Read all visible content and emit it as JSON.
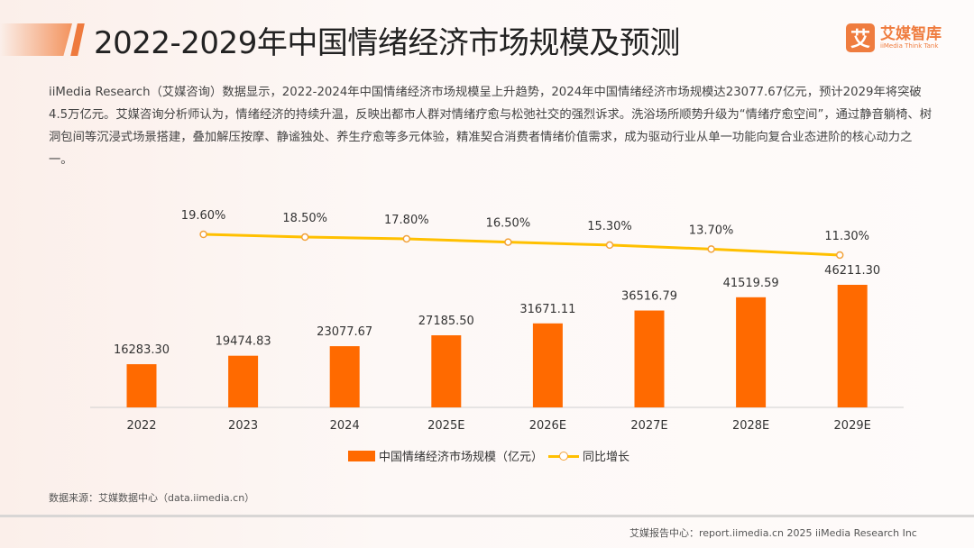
{
  "header": {
    "title": "2022-2029年中国情绪经济市场规模及预测",
    "logo_mark": "艾",
    "logo_name": "艾媒智库",
    "logo_sub": "iiMedia Think Tank"
  },
  "description": "iiMedia Research（艾媒咨询）数据显示，2022-2024年中国情绪经济市场规模呈上升趋势，2024年中国情绪经济市场规模达23077.67亿元，预计2029年将突破4.5万亿元。艾媒咨询分析师认为，情绪经济的持续升温，反映出都市人群对情绪疗愈与松弛社交的强烈诉求。洗浴场所顺势升级为“情绪疗愈空间”，通过静音躺椅、树洞包间等沉浸式场景搭建，叠加解压按摩、静谧独处、养生疗愈等多元体验，精准契合消费者情绪价值需求，成为驱动行业从单一功能向复合业态进阶的核心动力之一。",
  "chart_data": {
    "type": "bar+line",
    "categories": [
      "2022",
      "2023",
      "2024",
      "2025E",
      "2026E",
      "2027E",
      "2028E",
      "2029E"
    ],
    "series": [
      {
        "name": "中国情绪经济市场规模（亿元）",
        "type": "bar",
        "color": "#ff6a00",
        "values": [
          16283.3,
          19474.83,
          23077.67,
          27185.5,
          31671.11,
          36516.79,
          41519.59,
          46211.3
        ],
        "labels": [
          "16283.30",
          "19474.83",
          "23077.67",
          "27185.50",
          "31671.11",
          "36516.79",
          "41519.59",
          "46211.30"
        ]
      },
      {
        "name": "同比增长",
        "type": "line",
        "color": "#ffc000",
        "values": [
          19.6,
          18.5,
          17.8,
          16.5,
          15.3,
          13.7,
          11.3
        ],
        "x": [
          "2023",
          "2024",
          "2025E",
          "2026E",
          "2027E",
          "2028E",
          "2029E"
        ],
        "labels": [
          "19.60%",
          "18.50%",
          "17.80%",
          "16.50%",
          "15.30%",
          "13.70%",
          "11.30%"
        ]
      }
    ],
    "legend": "bottom",
    "grid": false
  },
  "source": "数据来源：艾媒数据中心（data.iimedia.cn）",
  "footer": "艾媒报告中心：report.iimedia.cn   2025 iiMedia Research Inc"
}
